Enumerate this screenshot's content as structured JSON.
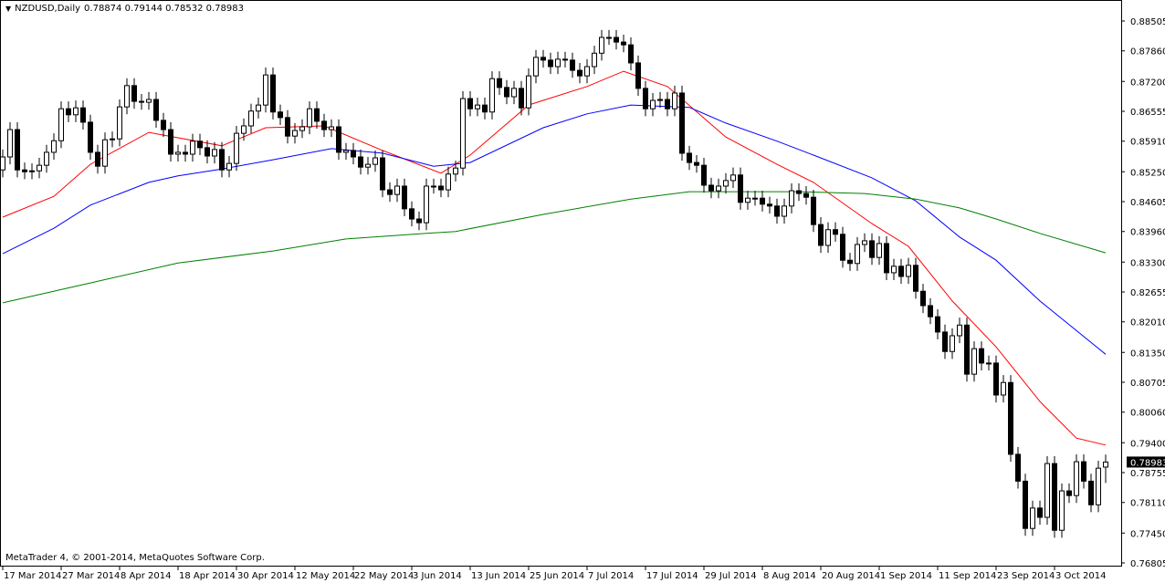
{
  "header": {
    "symbol": "NZDUSD,Daily",
    "ohlc": "0.78874 0.79144 0.78532 0.78983",
    "menu_icon": "triangle-down-icon"
  },
  "copyright": "MetaTrader 4, © 2001-2014, MetaQuotes Software Corp.",
  "colors": {
    "bull_body": "#ffffff",
    "bear_body": "#000000",
    "ma_fast": "#ff0000",
    "ma_mid": "#0000ff",
    "ma_slow": "#008000",
    "price_label_bg": "#000000"
  },
  "chart_data": {
    "type": "candlestick",
    "symbol": "NZDUSD",
    "timeframe": "Daily",
    "ylim": [
      0.76805,
      0.88505
    ],
    "y_ticks": [
      "0.88505",
      "0.87860",
      "0.87200",
      "0.86555",
      "0.85910",
      "0.85250",
      "0.84605",
      "0.83960",
      "0.83300",
      "0.82655",
      "0.82010",
      "0.81350",
      "0.80705",
      "0.80060",
      "0.79400",
      "0.78755",
      "0.78110",
      "0.77450",
      "0.76805"
    ],
    "x_ticks": [
      {
        "bar": 0,
        "label": "17 Mar 2014"
      },
      {
        "bar": 8,
        "label": "27 Mar 2014"
      },
      {
        "bar": 16,
        "label": "8 Apr 2014"
      },
      {
        "bar": 24,
        "label": "18 Apr 2014"
      },
      {
        "bar": 32,
        "label": "30 Apr 2014"
      },
      {
        "bar": 40,
        "label": "12 May 2014"
      },
      {
        "bar": 48,
        "label": "22 May 2014"
      },
      {
        "bar": 56,
        "label": "3 Jun 2014"
      },
      {
        "bar": 64,
        "label": "13 Jun 2014"
      },
      {
        "bar": 72,
        "label": "25 Jun 2014"
      },
      {
        "bar": 80,
        "label": "7 Jul 2014"
      },
      {
        "bar": 88,
        "label": "17 Jul 2014"
      },
      {
        "bar": 96,
        "label": "29 Jul 2014"
      },
      {
        "bar": 104,
        "label": "8 Aug 2014"
      },
      {
        "bar": 112,
        "label": "20 Aug 2014"
      },
      {
        "bar": 120,
        "label": "1 Sep 2014"
      },
      {
        "bar": 128,
        "label": "11 Sep 2014"
      },
      {
        "bar": 136,
        "label": "23 Sep 2014"
      },
      {
        "bar": 144,
        "label": "3 Oct 2014"
      }
    ],
    "current_price": "0.78983",
    "first_open": 0.8529,
    "last_bar": {
      "open": 0.78874,
      "high": 0.79144,
      "low": 0.78532,
      "close": 0.78983
    },
    "closes": [
      0.8557,
      0.8616,
      0.8529,
      0.8525,
      0.8527,
      0.8539,
      0.8567,
      0.8592,
      0.8661,
      0.8648,
      0.8663,
      0.8632,
      0.8567,
      0.8537,
      0.8594,
      0.8596,
      0.8665,
      0.8711,
      0.8677,
      0.8675,
      0.8681,
      0.8636,
      0.8616,
      0.8563,
      0.8567,
      0.8563,
      0.8591,
      0.8577,
      0.8559,
      0.8573,
      0.8529,
      0.8543,
      0.8608,
      0.8624,
      0.8656,
      0.8669,
      0.8734,
      0.8654,
      0.8642,
      0.8602,
      0.8614,
      0.8622,
      0.8661,
      0.8634,
      0.8616,
      0.8622,
      0.8567,
      0.8571,
      0.8557,
      0.8535,
      0.8541,
      0.8555,
      0.8486,
      0.8476,
      0.8494,
      0.8445,
      0.8423,
      0.8415,
      0.8494,
      0.8494,
      0.8486,
      0.852,
      0.8533,
      0.8683,
      0.8661,
      0.8669,
      0.8654,
      0.8726,
      0.8707,
      0.8687,
      0.8705,
      0.8663,
      0.8732,
      0.8772,
      0.8766,
      0.8752,
      0.8768,
      0.8766,
      0.8744,
      0.8732,
      0.8752,
      0.8781,
      0.8815,
      0.8815,
      0.8805,
      0.8799,
      0.876,
      0.8705,
      0.8661,
      0.8679,
      0.8681,
      0.8661,
      0.8695,
      0.8565,
      0.8545,
      0.8539,
      0.8496,
      0.8484,
      0.8494,
      0.8506,
      0.8518,
      0.8459,
      0.8468,
      0.8468,
      0.8455,
      0.8451,
      0.8429,
      0.8451,
      0.8484,
      0.8478,
      0.847,
      0.8411,
      0.8366,
      0.84,
      0.839,
      0.8334,
      0.8327,
      0.8368,
      0.8376,
      0.834,
      0.837,
      0.8307,
      0.8321,
      0.8299,
      0.8323,
      0.8267,
      0.8236,
      0.8212,
      0.8179,
      0.8137,
      0.8171,
      0.8194,
      0.8088,
      0.8143,
      0.8112,
      0.8112,
      0.8043,
      0.807,
      0.7915,
      0.7857,
      0.7755,
      0.7799,
      0.7779,
      0.7895,
      0.7751,
      0.7836,
      0.7826,
      0.7899,
      0.7857,
      0.7806,
      0.7885,
      0.78983
    ],
    "moving_averages": [
      {
        "color": "#ff0000",
        "points": [
          [
            0,
            0.8427
          ],
          [
            7,
            0.8472
          ],
          [
            12,
            0.8541
          ],
          [
            20,
            0.861
          ],
          [
            30,
            0.8581
          ],
          [
            36,
            0.862
          ],
          [
            44,
            0.8624
          ],
          [
            52,
            0.8571
          ],
          [
            60,
            0.8522
          ],
          [
            64,
            0.8561
          ],
          [
            72,
            0.8669
          ],
          [
            80,
            0.8709
          ],
          [
            85,
            0.8742
          ],
          [
            91,
            0.8709
          ],
          [
            99,
            0.86
          ],
          [
            106,
            0.8541
          ],
          [
            111,
            0.8502
          ],
          [
            119,
            0.8413
          ],
          [
            124,
            0.8364
          ],
          [
            130,
            0.8246
          ],
          [
            136,
            0.8147
          ],
          [
            142,
            0.8029
          ],
          [
            147,
            0.795
          ],
          [
            151,
            0.7935
          ]
        ]
      },
      {
        "color": "#0000ff",
        "points": [
          [
            0,
            0.8348
          ],
          [
            7,
            0.8403
          ],
          [
            12,
            0.8453
          ],
          [
            20,
            0.8502
          ],
          [
            24,
            0.8516
          ],
          [
            30,
            0.8531
          ],
          [
            37,
            0.8551
          ],
          [
            45,
            0.8575
          ],
          [
            52,
            0.8565
          ],
          [
            59,
            0.8537
          ],
          [
            64,
            0.8545
          ],
          [
            74,
            0.862
          ],
          [
            80,
            0.865
          ],
          [
            86,
            0.8669
          ],
          [
            94,
            0.8664
          ],
          [
            99,
            0.863
          ],
          [
            106,
            0.8591
          ],
          [
            111,
            0.8561
          ],
          [
            119,
            0.8512
          ],
          [
            125,
            0.8462
          ],
          [
            131,
            0.8384
          ],
          [
            136,
            0.8334
          ],
          [
            142,
            0.8246
          ],
          [
            151,
            0.8131
          ]
        ]
      },
      {
        "color": "#008000",
        "points": [
          [
            0,
            0.8242
          ],
          [
            12,
            0.8285
          ],
          [
            24,
            0.8328
          ],
          [
            37,
            0.8354
          ],
          [
            47,
            0.838
          ],
          [
            58,
            0.8392
          ],
          [
            62,
            0.8396
          ],
          [
            74,
            0.8433
          ],
          [
            86,
            0.8466
          ],
          [
            94,
            0.8482
          ],
          [
            109,
            0.8482
          ],
          [
            118,
            0.8478
          ],
          [
            125,
            0.8466
          ],
          [
            131,
            0.8447
          ],
          [
            136,
            0.8423
          ],
          [
            142,
            0.8392
          ],
          [
            151,
            0.835
          ]
        ]
      }
    ]
  }
}
